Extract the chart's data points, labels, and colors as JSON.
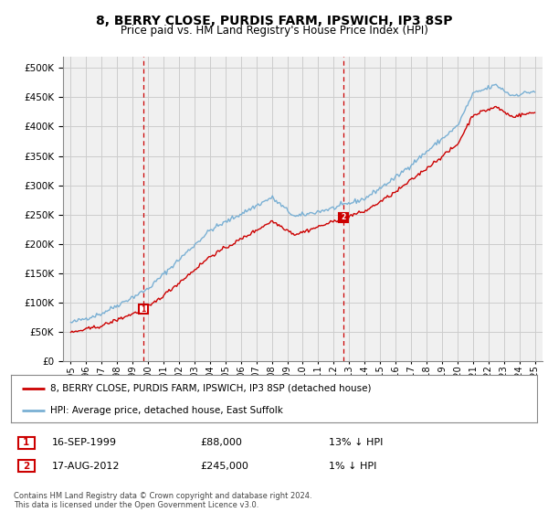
{
  "title": "8, BERRY CLOSE, PURDIS FARM, IPSWICH, IP3 8SP",
  "subtitle": "Price paid vs. HM Land Registry's House Price Index (HPI)",
  "yticks": [
    0,
    50000,
    100000,
    150000,
    200000,
    250000,
    300000,
    350000,
    400000,
    450000,
    500000
  ],
  "ylim": [
    0,
    520000
  ],
  "xlim_start": 1994.5,
  "xlim_end": 2025.5,
  "sale1_date": 1999.71,
  "sale1_price": 88000,
  "sale2_date": 2012.63,
  "sale2_price": 245000,
  "line_color_red": "#cc0000",
  "line_color_blue": "#7ab0d4",
  "marker_color_red": "#cc0000",
  "vline_color": "#cc0000",
  "grid_color": "#cccccc",
  "bg_color": "#ffffff",
  "plot_bg_color": "#f0f0f0",
  "legend_text1": "8, BERRY CLOSE, PURDIS FARM, IPSWICH, IP3 8SP (detached house)",
  "legend_text2": "HPI: Average price, detached house, East Suffolk",
  "footnote": "Contains HM Land Registry data © Crown copyright and database right 2024.\nThis data is licensed under the Open Government Licence v3.0.",
  "table_row1": [
    "1",
    "16-SEP-1999",
    "£88,000",
    "13% ↓ HPI"
  ],
  "table_row2": [
    "2",
    "17-AUG-2012",
    "£245,000",
    "1% ↓ HPI"
  ],
  "xticks": [
    1995,
    1996,
    1997,
    1998,
    1999,
    2000,
    2001,
    2002,
    2003,
    2004,
    2005,
    2006,
    2007,
    2008,
    2009,
    2010,
    2011,
    2012,
    2013,
    2014,
    2015,
    2016,
    2017,
    2018,
    2019,
    2020,
    2021,
    2022,
    2023,
    2024,
    2025
  ]
}
